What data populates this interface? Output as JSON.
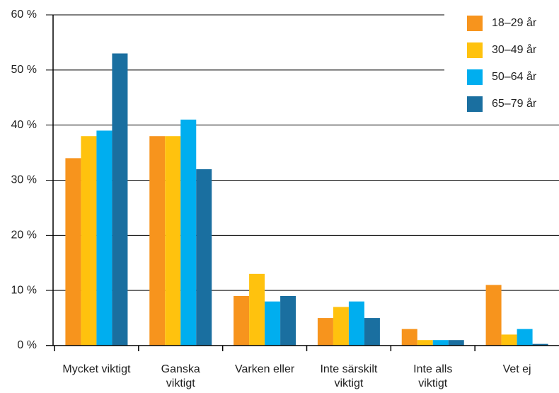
{
  "chart_data": {
    "type": "bar",
    "categories": [
      "Mycket viktigt",
      "Ganska viktigt",
      "Varken eller",
      "Inte särskilt viktigt",
      "Inte alls viktigt",
      "Vet ej"
    ],
    "series": [
      {
        "name": "18–29 år",
        "color": "#f7941d",
        "values": [
          34,
          38,
          9,
          5,
          3,
          11
        ]
      },
      {
        "name": "30–49 år",
        "color": "#ffc20e",
        "values": [
          38,
          38,
          13,
          7,
          1,
          2
        ]
      },
      {
        "name": "50–64 år",
        "color": "#00aeef",
        "values": [
          39,
          41,
          8,
          8,
          1,
          3
        ]
      },
      {
        "name": "65–79 år",
        "color": "#1a6fa0",
        "values": [
          53,
          32,
          9,
          5,
          1,
          0.3
        ]
      }
    ],
    "ylim": [
      0,
      60
    ],
    "yticks": [
      {
        "value": 0,
        "label": "0 %"
      },
      {
        "value": 10,
        "label": "10 %"
      },
      {
        "value": 20,
        "label": "20 %"
      },
      {
        "value": 30,
        "label": "30 %"
      },
      {
        "value": 40,
        "label": "40 %"
      },
      {
        "value": 50,
        "label": "50 %"
      },
      {
        "value": 60,
        "label": "60 %"
      }
    ],
    "grid": true,
    "legend": "top-right"
  }
}
